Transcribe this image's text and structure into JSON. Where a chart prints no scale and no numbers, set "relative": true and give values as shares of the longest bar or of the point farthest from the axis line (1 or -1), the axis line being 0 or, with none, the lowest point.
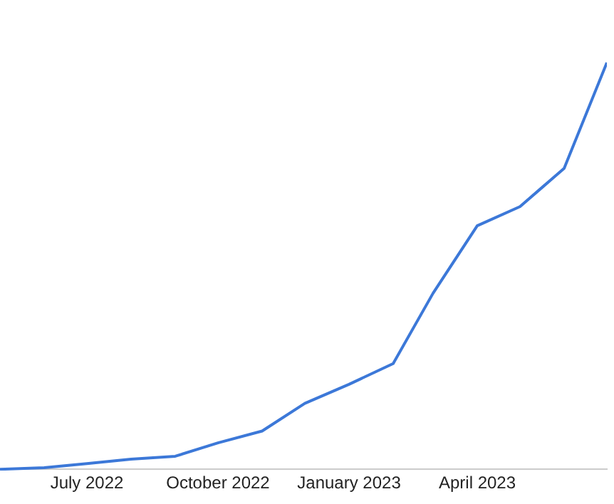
{
  "chart_data": {
    "type": "line",
    "relative": true,
    "grid": false,
    "legend": false,
    "tick_labels": "x",
    "marker": "none",
    "x": [
      "2022-05",
      "2022-06",
      "2022-07",
      "2022-08",
      "2022-09",
      "2022-10",
      "2022-11",
      "2022-12",
      "2023-01",
      "2023-02",
      "2023-03",
      "2023-04",
      "2023-05",
      "2023-06",
      "2023-07"
    ],
    "xlim": [
      "2022-05",
      "2023-07"
    ],
    "xticks": [
      {
        "value": "2022-07",
        "label": "July 2022"
      },
      {
        "value": "2022-10",
        "label": "October 2022"
      },
      {
        "value": "2023-01",
        "label": "January 2023"
      },
      {
        "value": "2023-04",
        "label": "April 2023"
      }
    ],
    "series": [
      {
        "color": "#3c78d8",
        "values": [
          0,
          0.004,
          0.014,
          0.025,
          0.032,
          0.065,
          0.094,
          0.162,
          0.209,
          0.26,
          0.433,
          0.599,
          0.646,
          0.74,
          1
        ]
      }
    ]
  }
}
